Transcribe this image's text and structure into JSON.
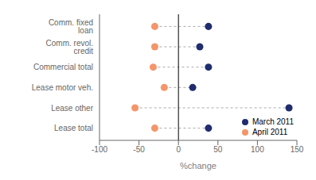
{
  "chart_data": {
    "type": "dumbbell",
    "categories": [
      "Comm. fixed loan",
      "Comm. revol. credit",
      "Commercial total",
      "Lease motor veh.",
      "Lease other",
      "Lease total"
    ],
    "series": [
      {
        "name": "March 2011",
        "color": "#1f2d6e",
        "values": [
          38,
          27,
          38,
          18,
          140,
          38
        ]
      },
      {
        "name": "April 2011",
        "color": "#f4956a",
        "values": [
          -30,
          -30,
          -32,
          -18,
          -55,
          -30
        ]
      }
    ],
    "xlabel": "%change",
    "xlim": [
      -100,
      150
    ],
    "xticks": [
      -100,
      -50,
      0,
      50,
      100,
      150
    ],
    "legend": "lower right",
    "marker": "circle"
  }
}
